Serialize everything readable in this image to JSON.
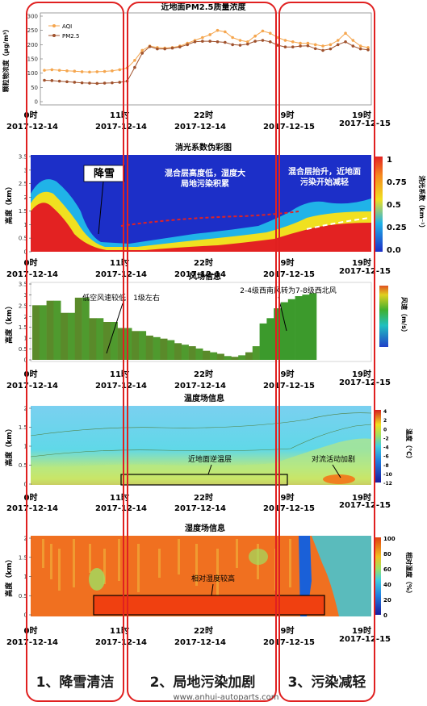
{
  "ticks": {
    "times": [
      "0时",
      "11时",
      "22时",
      "9时",
      "19时"
    ],
    "dates": [
      "2017-12-14",
      "2017-12-14",
      "2017-12-14",
      "2017-12-15",
      "2017-12-15"
    ]
  },
  "panel1": {
    "title": "近地面PM2.5质量浓度",
    "ylabel": "颗粒物浓度（μg/m³）",
    "yticks": [
      "0",
      "50",
      "100",
      "150",
      "200",
      "250",
      "300"
    ]
  },
  "panel2": {
    "title": "消光系数伪彩图",
    "ylabel": "高度（km）",
    "yticks": [
      "0",
      "0.5",
      "1",
      "1.5",
      "2",
      "2.5",
      "3",
      "3.5"
    ],
    "cbar_label": "消光系数（km⁻¹）",
    "cbar_ticks": [
      "0.0",
      "0.25",
      "0.5",
      "0.75",
      "1"
    ],
    "annotations": {
      "snow": "降雪",
      "mix1": "混合层高度低，湿度大",
      "mix2": "局地污染积累",
      "rise1": "混合层抬升，近地面",
      "rise2": "污染开始减轻"
    }
  },
  "panel3": {
    "title": "风场信息",
    "ylabel": "高度（km）",
    "yticks": [
      "0",
      "0.5",
      "1",
      "1.5",
      "2",
      "2.5",
      "3",
      "3.5"
    ],
    "cbar_label": "风速（m/s）",
    "annotations": {
      "low": "低空风速较低，1级左右",
      "shift": "2-4级西南风转为7-8级西北风"
    }
  },
  "panel4": {
    "title": "温度场信息",
    "ylabel": "高度（km）",
    "yticks": [
      "0",
      "0.5",
      "1",
      "1.5",
      "2"
    ],
    "cbar_label": "温度（℃）",
    "cbar_ticks": [
      "4",
      "2",
      "0",
      "-2",
      "-4",
      "-6",
      "-8",
      "-10",
      "-12"
    ],
    "annotations": {
      "inversion": "近地面逆温层",
      "convect": "对流活动加剧"
    }
  },
  "panel5": {
    "title": "湿度场信息",
    "ylabel": "高度（km）",
    "yticks": [
      "0",
      "0.5",
      "1",
      "1.5",
      "2"
    ],
    "cbar_label": "相对湿度（%）",
    "cbar_ticks": [
      "100",
      "80",
      "60",
      "40",
      "20",
      "0"
    ],
    "annotations": {
      "humid": "相对湿度较高"
    }
  },
  "stages": [
    "1、降雪清洁",
    "2、局地污染加剧",
    "3、污染减轻"
  ],
  "watermark": "www.anhui-autoparts.com",
  "chart_data": {
    "type": "line",
    "title": "近地面PM2.5质量浓度",
    "ylabel": "颗粒物浓度（μg/m³）",
    "ylim": [
      0,
      300
    ],
    "x": [
      0,
      1,
      2,
      3,
      4,
      5,
      6,
      7,
      8,
      9,
      10,
      11,
      12,
      13,
      14,
      15,
      16,
      17,
      18,
      19,
      20,
      21,
      22,
      23,
      24,
      25,
      26,
      27,
      28,
      29,
      30,
      31,
      32,
      33,
      34,
      35,
      36,
      37,
      38,
      39,
      40,
      41,
      42,
      43
    ],
    "series": [
      {
        "name": "AQI",
        "color": "#f5a64e",
        "values": [
          110,
          112,
          110,
          108,
          107,
          105,
          104,
          105,
          106,
          108,
          112,
          118,
          145,
          180,
          195,
          190,
          188,
          190,
          195,
          205,
          215,
          225,
          235,
          250,
          245,
          225,
          215,
          210,
          230,
          248,
          240,
          225,
          215,
          210,
          205,
          205,
          200,
          195,
          200,
          215,
          240,
          215,
          195,
          190
        ]
      },
      {
        "name": "PM2.5",
        "color": "#a0522d",
        "values": [
          75,
          74,
          72,
          70,
          68,
          66,
          65,
          64,
          65,
          66,
          68,
          72,
          120,
          170,
          193,
          185,
          185,
          188,
          192,
          200,
          210,
          212,
          212,
          210,
          208,
          200,
          198,
          202,
          212,
          215,
          210,
          198,
          192,
          192,
          195,
          196,
          186,
          180,
          185,
          200,
          210,
          195,
          185,
          182
        ]
      }
    ]
  }
}
